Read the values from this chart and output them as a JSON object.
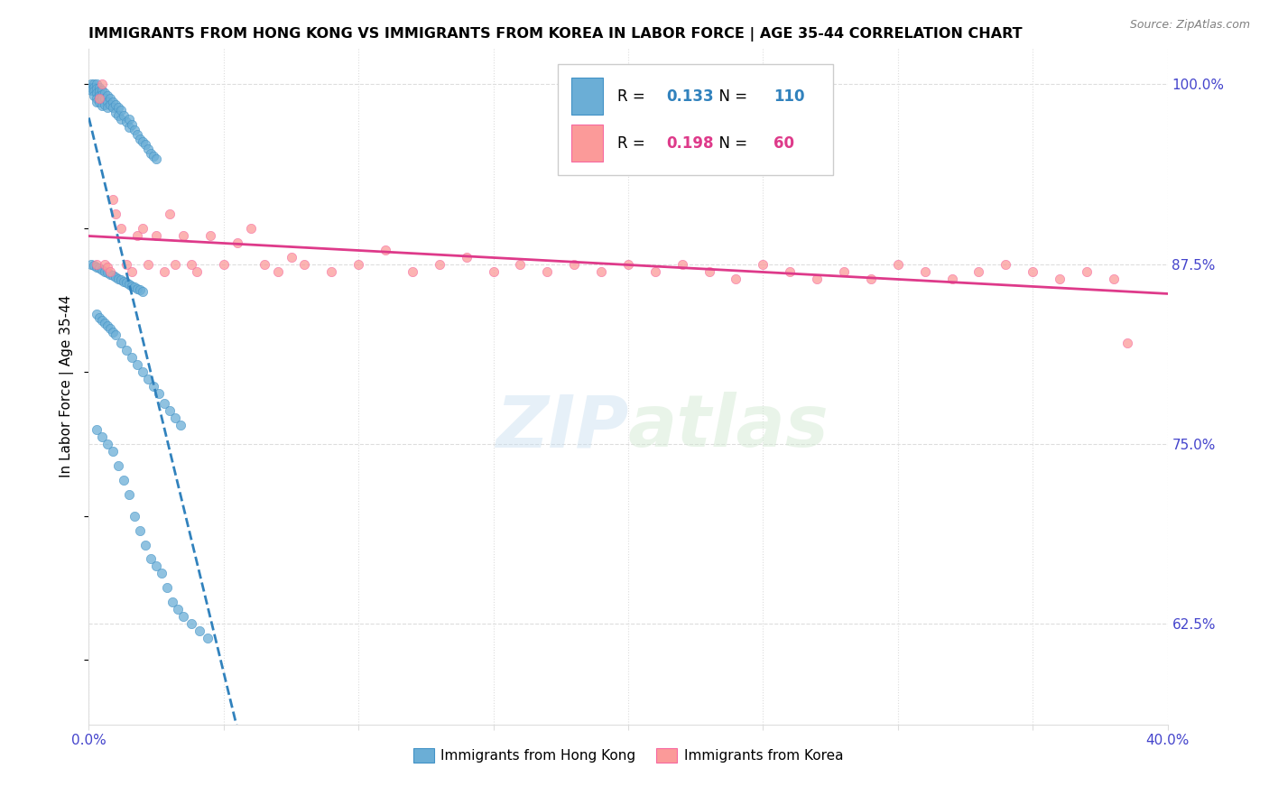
{
  "title": "IMMIGRANTS FROM HONG KONG VS IMMIGRANTS FROM KOREA IN LABOR FORCE | AGE 35-44 CORRELATION CHART",
  "source": "Source: ZipAtlas.com",
  "ylabel": "In Labor Force | Age 35-44",
  "xmin": 0.0,
  "xmax": 0.4,
  "ymin": 0.555,
  "ymax": 1.025,
  "yticks": [
    0.625,
    0.75,
    0.875,
    1.0
  ],
  "ytick_labels": [
    "62.5%",
    "75.0%",
    "87.5%",
    "100.0%"
  ],
  "xticks": [
    0.0,
    0.05,
    0.1,
    0.15,
    0.2,
    0.25,
    0.3,
    0.35,
    0.4
  ],
  "xtick_labels": [
    "0.0%",
    "",
    "",
    "",
    "",
    "",
    "",
    "",
    "40.0%"
  ],
  "hk_color": "#6baed6",
  "hk_edge_color": "#4292c6",
  "korea_color": "#fb9a99",
  "korea_edge_color": "#f768a1",
  "hk_line_color": "#3182bd",
  "korea_line_color": "#de3a8a",
  "hk_R": 0.133,
  "hk_N": 110,
  "korea_R": 0.198,
  "korea_N": 60,
  "tick_color": "#4444cc",
  "grid_color": "#dddddd",
  "hk_scatter_x": [
    0.001,
    0.001,
    0.001,
    0.002,
    0.002,
    0.002,
    0.002,
    0.003,
    0.003,
    0.003,
    0.003,
    0.003,
    0.004,
    0.004,
    0.004,
    0.004,
    0.005,
    0.005,
    0.005,
    0.005,
    0.006,
    0.006,
    0.006,
    0.007,
    0.007,
    0.007,
    0.008,
    0.008,
    0.009,
    0.009,
    0.01,
    0.01,
    0.011,
    0.011,
    0.012,
    0.012,
    0.013,
    0.014,
    0.015,
    0.015,
    0.016,
    0.017,
    0.018,
    0.019,
    0.02,
    0.021,
    0.022,
    0.023,
    0.024,
    0.025,
    0.001,
    0.002,
    0.003,
    0.004,
    0.005,
    0.006,
    0.007,
    0.008,
    0.009,
    0.01,
    0.011,
    0.012,
    0.013,
    0.014,
    0.015,
    0.016,
    0.017,
    0.018,
    0.019,
    0.02,
    0.003,
    0.004,
    0.005,
    0.006,
    0.007,
    0.008,
    0.009,
    0.01,
    0.012,
    0.014,
    0.016,
    0.018,
    0.02,
    0.022,
    0.024,
    0.026,
    0.028,
    0.03,
    0.032,
    0.034,
    0.003,
    0.005,
    0.007,
    0.009,
    0.011,
    0.013,
    0.015,
    0.017,
    0.019,
    0.021,
    0.023,
    0.025,
    0.027,
    0.029,
    0.031,
    0.033,
    0.035,
    0.038,
    0.041,
    0.044
  ],
  "hk_scatter_y": [
    1.0,
    0.998,
    0.996,
    1.0,
    0.998,
    0.995,
    0.992,
    1.0,
    0.997,
    0.994,
    0.99,
    0.988,
    0.998,
    0.995,
    0.992,
    0.988,
    0.996,
    0.993,
    0.99,
    0.985,
    0.994,
    0.99,
    0.986,
    0.992,
    0.988,
    0.984,
    0.99,
    0.986,
    0.988,
    0.984,
    0.986,
    0.98,
    0.984,
    0.978,
    0.982,
    0.976,
    0.978,
    0.974,
    0.976,
    0.97,
    0.972,
    0.968,
    0.965,
    0.962,
    0.96,
    0.958,
    0.955,
    0.952,
    0.95,
    0.948,
    0.875,
    0.874,
    0.873,
    0.872,
    0.871,
    0.87,
    0.869,
    0.868,
    0.867,
    0.866,
    0.865,
    0.864,
    0.863,
    0.862,
    0.861,
    0.86,
    0.859,
    0.858,
    0.857,
    0.856,
    0.84,
    0.838,
    0.836,
    0.834,
    0.832,
    0.83,
    0.828,
    0.826,
    0.82,
    0.815,
    0.81,
    0.805,
    0.8,
    0.795,
    0.79,
    0.785,
    0.778,
    0.773,
    0.768,
    0.763,
    0.76,
    0.755,
    0.75,
    0.745,
    0.735,
    0.725,
    0.715,
    0.7,
    0.69,
    0.68,
    0.67,
    0.665,
    0.66,
    0.65,
    0.64,
    0.635,
    0.63,
    0.625,
    0.62,
    0.615
  ],
  "korea_scatter_x": [
    0.003,
    0.004,
    0.005,
    0.006,
    0.007,
    0.008,
    0.009,
    0.01,
    0.012,
    0.014,
    0.016,
    0.018,
    0.02,
    0.022,
    0.025,
    0.028,
    0.03,
    0.032,
    0.035,
    0.038,
    0.04,
    0.045,
    0.05,
    0.055,
    0.06,
    0.065,
    0.07,
    0.075,
    0.08,
    0.09,
    0.1,
    0.11,
    0.12,
    0.13,
    0.14,
    0.15,
    0.16,
    0.17,
    0.18,
    0.19,
    0.2,
    0.21,
    0.22,
    0.23,
    0.24,
    0.25,
    0.26,
    0.27,
    0.28,
    0.29,
    0.3,
    0.31,
    0.32,
    0.33,
    0.34,
    0.35,
    0.36,
    0.37,
    0.38,
    0.385
  ],
  "korea_scatter_y": [
    0.875,
    0.99,
    1.0,
    0.875,
    0.873,
    0.87,
    0.92,
    0.91,
    0.9,
    0.875,
    0.87,
    0.895,
    0.9,
    0.875,
    0.895,
    0.87,
    0.91,
    0.875,
    0.895,
    0.875,
    0.87,
    0.895,
    0.875,
    0.89,
    0.9,
    0.875,
    0.87,
    0.88,
    0.875,
    0.87,
    0.875,
    0.885,
    0.87,
    0.875,
    0.88,
    0.87,
    0.875,
    0.87,
    0.875,
    0.87,
    0.875,
    0.87,
    0.875,
    0.87,
    0.865,
    0.875,
    0.87,
    0.865,
    0.87,
    0.865,
    0.875,
    0.87,
    0.865,
    0.87,
    0.875,
    0.87,
    0.865,
    0.87,
    0.865,
    0.82
  ]
}
